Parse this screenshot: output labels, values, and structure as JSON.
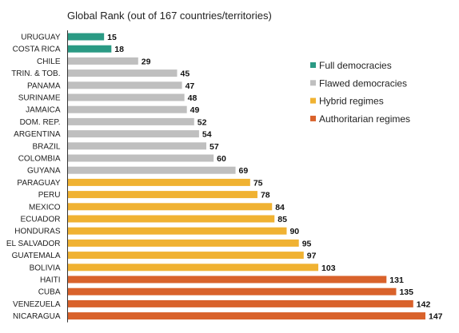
{
  "chart_data": {
    "type": "bar",
    "orientation": "horizontal",
    "title": "Global Rank (out of 167 countries/territories)",
    "categories": [
      "URUGUAY",
      "COSTA RICA",
      "CHILE",
      "TRIN. & TOB.",
      "PANAMA",
      "SURINAME",
      "JAMAICA",
      "DOM. REP.",
      "ARGENTINA",
      "BRAZIL",
      "COLOMBIA",
      "GUYANA",
      "PARAGUAY",
      "PERU",
      "MEXICO",
      "ECUADOR",
      "HONDURAS",
      "EL SALVADOR",
      "GUATEMALA",
      "BOLIVIA",
      "HAITI",
      "CUBA",
      "VENEZUELA",
      "NICARAGUA"
    ],
    "values": [
      15,
      18,
      29,
      45,
      47,
      48,
      49,
      52,
      54,
      57,
      60,
      69,
      75,
      78,
      84,
      85,
      90,
      95,
      97,
      103,
      131,
      135,
      142,
      147
    ],
    "groups": [
      0,
      0,
      1,
      1,
      1,
      1,
      1,
      1,
      1,
      1,
      1,
      1,
      2,
      2,
      2,
      2,
      2,
      2,
      2,
      2,
      3,
      3,
      3,
      3
    ],
    "legend": [
      {
        "name": "Full democracies",
        "color": "#2a9a84"
      },
      {
        "name": "Flawed democracies",
        "color": "#bfbfbf"
      },
      {
        "name": "Hybrid regimes",
        "color": "#f0b232"
      },
      {
        "name": "Authoritarian regimes",
        "color": "#d9622b"
      }
    ],
    "legend_position": "right",
    "xlim": [
      0,
      147
    ],
    "grid": false
  }
}
